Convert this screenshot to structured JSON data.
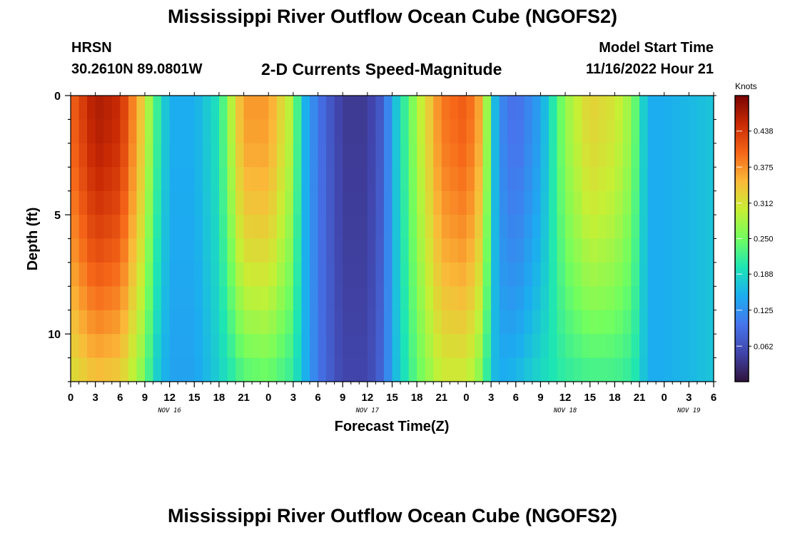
{
  "header": {
    "title": "Mississippi River Outflow Ocean Cube (NGOFS2)",
    "station": "HRSN",
    "coords": "30.2610N  89.0801W",
    "subtitle": "2-D Currents Speed-Magnitude",
    "model_start_label": "Model Start Time",
    "model_start_value": "11/16/2022 Hour 21"
  },
  "footer": {
    "title": "Mississippi River Outflow Ocean Cube (NGOFS2)"
  },
  "chart_data": {
    "type": "heatmap",
    "title": "2-D Currents Speed-Magnitude",
    "xlabel": "Forecast Time(Z)",
    "ylabel": "Depth (ft)",
    "x_start": "11/16/2022 00Z",
    "x_range_hours": [
      0,
      78
    ],
    "x_ticks": [
      "0",
      "3",
      "6",
      "9",
      "12",
      "15",
      "18",
      "21",
      "0",
      "3",
      "6",
      "9",
      "12",
      "15",
      "18",
      "21",
      "0",
      "3",
      "6",
      "9",
      "12",
      "15",
      "18",
      "21",
      "0",
      "3",
      "6"
    ],
    "date_labels": [
      {
        "text": "NOV 16",
        "hour": 12
      },
      {
        "text": "NOV 17",
        "hour": 36
      },
      {
        "text": "NOV 18",
        "hour": 60
      },
      {
        "text": "NOV 19",
        "hour": 75
      }
    ],
    "y_range_ft": [
      0,
      12
    ],
    "y_ticks": [
      0,
      5,
      10
    ],
    "y_minor_step_ft": 1,
    "colorbar": {
      "label": "Knots",
      "min": 0.0,
      "max": 0.5,
      "ticks": [
        "0.062",
        "0.125",
        "0.188",
        "0.250",
        "0.312",
        "0.375",
        "0.438"
      ],
      "colormap": "turbo"
    },
    "time_hours": [
      0,
      3,
      6,
      9,
      10,
      12,
      15,
      18,
      20,
      21,
      24,
      27,
      28,
      30,
      33,
      36,
      38,
      39,
      42,
      45,
      48,
      50,
      51,
      52,
      54,
      57,
      60,
      63,
      66,
      68,
      69,
      70,
      72,
      75,
      78
    ],
    "surface_speed_knots": [
      0.4,
      0.47,
      0.45,
      0.32,
      0.24,
      0.15,
      0.15,
      0.2,
      0.32,
      0.37,
      0.37,
      0.28,
      0.17,
      0.1,
      0.04,
      0.04,
      0.08,
      0.15,
      0.28,
      0.39,
      0.41,
      0.35,
      0.2,
      0.12,
      0.09,
      0.14,
      0.27,
      0.33,
      0.31,
      0.27,
      0.21,
      0.15,
      0.15,
      0.16,
      0.17
    ],
    "bottom_speed_knots": [
      0.31,
      0.34,
      0.33,
      0.25,
      0.19,
      0.14,
      0.14,
      0.18,
      0.21,
      0.23,
      0.24,
      0.21,
      0.17,
      0.1,
      0.05,
      0.05,
      0.09,
      0.15,
      0.24,
      0.3,
      0.3,
      0.25,
      0.17,
      0.15,
      0.16,
      0.19,
      0.21,
      0.22,
      0.22,
      0.21,
      0.19,
      0.15,
      0.15,
      0.16,
      0.17
    ]
  }
}
